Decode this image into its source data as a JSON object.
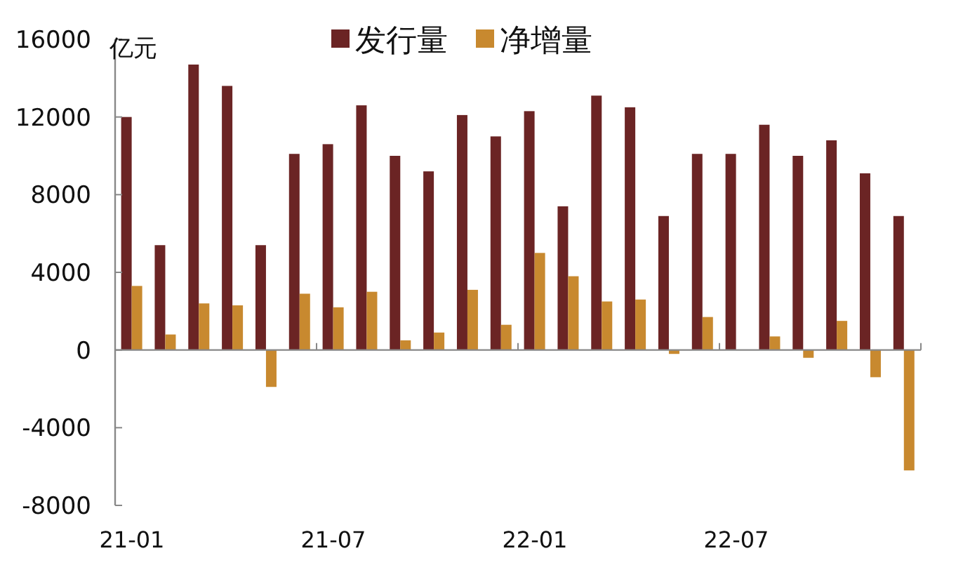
{
  "chart_data": {
    "type": "bar",
    "ylabel": "亿元",
    "categories": [
      "21-01",
      null,
      null,
      null,
      null,
      null,
      "21-07",
      null,
      null,
      null,
      null,
      null,
      "22-01",
      null,
      null,
      null,
      null,
      null,
      "22-07",
      null,
      null,
      null,
      null,
      null
    ],
    "series": [
      {
        "name": "发行量",
        "color": "#6b2424",
        "values": [
          12000,
          5400,
          14700,
          13600,
          5400,
          10100,
          10600,
          12600,
          10000,
          9200,
          12100,
          11000,
          12300,
          7400,
          13100,
          12500,
          6900,
          10100,
          10100,
          11600,
          10000,
          10800,
          9100,
          6900
        ]
      },
      {
        "name": "净增量",
        "color": "#c8892f",
        "values": [
          3300,
          800,
          2400,
          2300,
          -1900,
          2900,
          2200,
          3000,
          500,
          900,
          3100,
          1300,
          5000,
          3800,
          2500,
          2600,
          -200,
          1700,
          0,
          700,
          -400,
          1500,
          -1400,
          -6200
        ]
      }
    ],
    "ylim": [
      -8000,
      16000
    ],
    "yticks": [
      -8000,
      -4000,
      0,
      4000,
      8000,
      12000,
      16000
    ],
    "legend": "top"
  }
}
